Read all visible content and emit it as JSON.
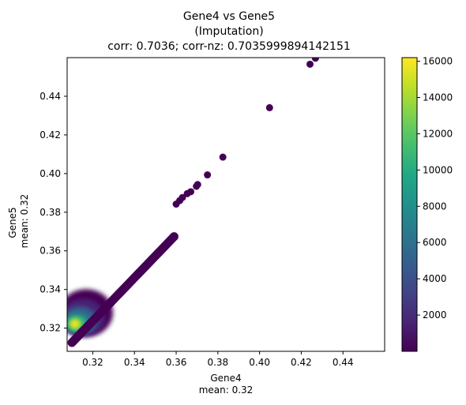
{
  "chart_data": {
    "type": "scatter",
    "title_lines": [
      "Gene4 vs Gene5",
      "(Imputation)",
      "corr: 0.7036; corr-nz: 0.7035999894142151"
    ],
    "xlabel_lines": [
      "Gene4",
      "mean: 0.32"
    ],
    "ylabel_lines": [
      "Gene5",
      "mean: 0.32"
    ],
    "xlim": [
      0.3077,
      0.46
    ],
    "ylim": [
      0.308,
      0.46
    ],
    "x_ticks": [
      0.32,
      0.34,
      0.36,
      0.38,
      0.4,
      0.42,
      0.44
    ],
    "y_ticks": [
      0.32,
      0.34,
      0.36,
      0.38,
      0.4,
      0.42,
      0.44
    ],
    "grid": false,
    "colormap": "viridis",
    "colorbar": {
      "range": [
        0,
        16200
      ],
      "ticks": [
        2000,
        4000,
        6000,
        8000,
        10000,
        12000,
        14000,
        16000
      ]
    },
    "outlier_points": [
      {
        "x": 0.4268,
        "y": 0.4597,
        "density": 20
      },
      {
        "x": 0.4242,
        "y": 0.4566,
        "density": 20
      },
      {
        "x": 0.4048,
        "y": 0.4341,
        "density": 20
      },
      {
        "x": 0.3824,
        "y": 0.4085,
        "density": 20
      },
      {
        "x": 0.375,
        "y": 0.3993,
        "density": 20
      },
      {
        "x": 0.3703,
        "y": 0.3943,
        "density": 20
      },
      {
        "x": 0.3697,
        "y": 0.3934,
        "density": 20
      },
      {
        "x": 0.367,
        "y": 0.3906,
        "density": 20
      },
      {
        "x": 0.3653,
        "y": 0.3896,
        "density": 20
      },
      {
        "x": 0.363,
        "y": 0.3876,
        "density": 20
      },
      {
        "x": 0.3617,
        "y": 0.386,
        "density": 20
      },
      {
        "x": 0.36,
        "y": 0.3842,
        "density": 20
      }
    ],
    "diagonal_band": {
      "x_range": [
        0.31,
        0.359
      ],
      "slope": 1.12,
      "intercept_y_at_x0": 0.3125,
      "density": 20
    },
    "dense_cluster": {
      "center": {
        "x": 0.3115,
        "y": 0.3222
      },
      "peak_density": 16000
    }
  }
}
